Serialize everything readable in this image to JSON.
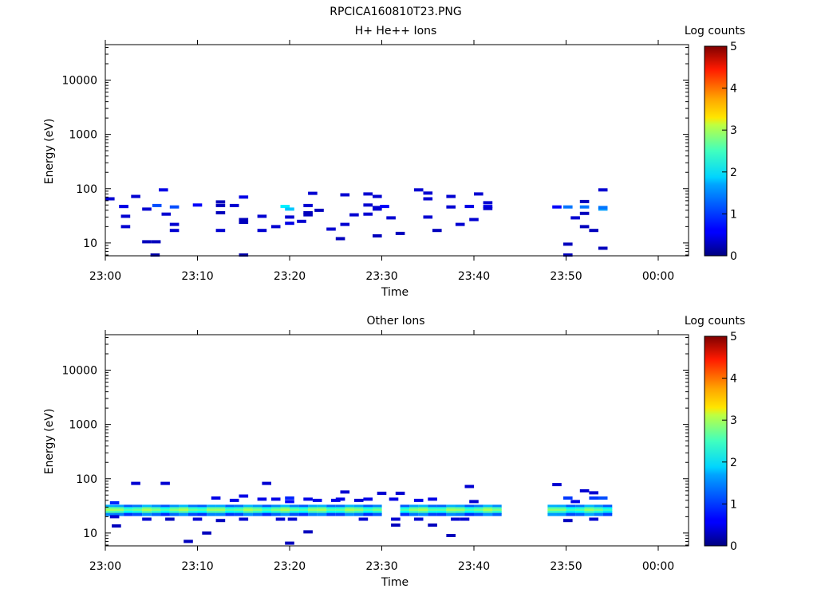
{
  "figure_title": "RPCICA160810T23.PNG",
  "chart_data": [
    {
      "type": "heatmap",
      "title": "H+ He++ Ions",
      "xlabel": "Time",
      "ylabel": "Energy (eV)",
      "x_tick_labels": [
        "23:00",
        "23:10",
        "23:20",
        "23:30",
        "23:40",
        "23:50",
        "00:00"
      ],
      "x_range_minutes": [
        0,
        63.5
      ],
      "y_scale": "log",
      "y_range": [
        5.8,
        45000
      ],
      "y_tick_labels": [
        "10",
        "100",
        "1000",
        "10000"
      ],
      "y_ticks": [
        10,
        100,
        1000,
        10000
      ],
      "colorbar": {
        "label": "Log counts",
        "range": [
          0,
          5
        ],
        "tick_labels": [
          "0",
          "1",
          "2",
          "3",
          "4",
          "5"
        ]
      },
      "cells": [
        [
          0.5,
          65,
          0.4
        ],
        [
          2,
          47,
          0.5
        ],
        [
          2,
          47,
          0.5
        ],
        [
          3.3,
          72,
          0.4
        ],
        [
          2.2,
          31,
          0.4
        ],
        [
          2.2,
          20,
          0.4
        ],
        [
          4.5,
          42,
          0.4
        ],
        [
          4.5,
          10.5,
          0.3
        ],
        [
          5.5,
          10.5,
          0.3
        ],
        [
          5.4,
          6,
          0.2
        ],
        [
          5.6,
          49,
          1.0
        ],
        [
          6.6,
          34,
          0.4
        ],
        [
          6.3,
          95,
          0.5
        ],
        [
          7.5,
          46,
          1.0
        ],
        [
          7.5,
          22,
          0.4
        ],
        [
          7.5,
          17,
          0.4
        ],
        [
          10,
          50,
          0.6
        ],
        [
          12.5,
          57,
          0.3
        ],
        [
          12.5,
          49,
          0.3
        ],
        [
          12.5,
          36,
          0.3
        ],
        [
          12.5,
          17,
          0.4
        ],
        [
          14,
          49,
          0.4
        ],
        [
          15,
          70,
          0.5
        ],
        [
          15,
          27,
          0.3
        ],
        [
          15,
          24,
          0.3
        ],
        [
          15,
          6,
          0.2
        ],
        [
          17,
          17,
          0.4
        ],
        [
          17,
          31,
          0.4
        ],
        [
          18.5,
          20,
          0.4
        ],
        [
          20,
          23,
          0.5
        ],
        [
          20,
          30,
          0.4
        ],
        [
          19.5,
          47,
          1.8
        ],
        [
          20,
          42,
          1.6
        ],
        [
          21.3,
          25,
          0.4
        ],
        [
          22,
          49,
          0.4
        ],
        [
          22,
          36,
          0.3
        ],
        [
          22,
          33,
          0.3
        ],
        [
          22.5,
          82,
          0.4
        ],
        [
          23.2,
          40,
          0.3
        ],
        [
          24.5,
          18,
          0.4
        ],
        [
          25.5,
          12,
          0.3
        ],
        [
          26,
          77,
          0.4
        ],
        [
          26,
          22,
          0.4
        ],
        [
          27,
          33,
          0.4
        ],
        [
          28.5,
          80,
          0.4
        ],
        [
          28.5,
          50,
          0.4
        ],
        [
          28.5,
          34,
          0.4
        ],
        [
          29.5,
          72,
          0.4
        ],
        [
          29.5,
          45,
          0.4
        ],
        [
          29.5,
          42,
          0.4
        ],
        [
          29.5,
          13.5,
          0.3
        ],
        [
          30.3,
          47,
          0.6
        ],
        [
          31,
          29,
          0.4
        ],
        [
          32,
          15,
          0.3
        ],
        [
          34,
          95,
          0.4
        ],
        [
          35,
          83,
          0.4
        ],
        [
          35,
          65,
          0.4
        ],
        [
          35,
          30,
          0.4
        ],
        [
          36,
          17,
          0.3
        ],
        [
          37.5,
          72,
          0.4
        ],
        [
          37.5,
          46,
          0.4
        ],
        [
          38.5,
          22,
          0.4
        ],
        [
          39.5,
          47,
          0.5
        ],
        [
          40,
          27,
          0.4
        ],
        [
          40.5,
          80,
          0.4
        ],
        [
          41.5,
          55,
          0.4
        ],
        [
          41.5,
          47,
          0.5
        ],
        [
          41.5,
          43,
          0.4
        ],
        [
          49,
          46,
          0.6
        ],
        [
          50.2,
          46,
          1.2
        ],
        [
          50.2,
          9.5,
          0.3
        ],
        [
          50.2,
          6,
          0.3
        ],
        [
          51,
          29,
          0.4
        ],
        [
          52,
          58,
          0.3
        ],
        [
          52,
          35,
          0.3
        ],
        [
          52,
          46,
          1.2
        ],
        [
          52,
          20,
          0.3
        ],
        [
          53,
          17,
          0.3
        ],
        [
          54,
          42,
          1.4
        ],
        [
          54,
          45,
          1.2
        ],
        [
          54,
          95,
          0.4
        ],
        [
          54,
          8,
          0.3
        ]
      ]
    },
    {
      "type": "heatmap",
      "title": "Other Ions",
      "xlabel": "Time",
      "ylabel": "Energy (eV)",
      "x_tick_labels": [
        "23:00",
        "23:10",
        "23:20",
        "23:30",
        "23:40",
        "23:50",
        "00:00"
      ],
      "x_range_minutes": [
        0,
        63.5
      ],
      "y_scale": "log",
      "y_range": [
        5.8,
        45000
      ],
      "y_tick_labels": [
        "10",
        "100",
        "1000",
        "10000"
      ],
      "y_ticks": [
        10,
        100,
        1000,
        10000
      ],
      "colorbar": {
        "label": "Log counts",
        "range": [
          0,
          5
        ],
        "tick_labels": [
          "0",
          "1",
          "2",
          "3",
          "4",
          "5"
        ]
      },
      "band": {
        "from": 0.5,
        "to": 42.5,
        "step": 1.0,
        "levels": [
          {
            "e": 31,
            "v": 1.3
          },
          {
            "e": 28,
            "v": 2.2
          },
          {
            "e": 26,
            "v": 2.5
          },
          {
            "e": 24,
            "v": 2.1
          },
          {
            "e": 22,
            "v": 1.1
          }
        ],
        "exclude": [
          [
            30.5,
            31.5
          ],
          [
            43,
            49
          ]
        ]
      },
      "band2": {
        "from": 48.5,
        "to": 54.5,
        "step": 1.0,
        "levels": [
          {
            "e": 31,
            "v": 1.3
          },
          {
            "e": 28,
            "v": 2.1
          },
          {
            "e": 26,
            "v": 2.4
          },
          {
            "e": 24,
            "v": 2.0
          },
          {
            "e": 22,
            "v": 1.2
          }
        ]
      },
      "cells": [
        [
          1,
          36,
          0.8
        ],
        [
          1,
          20,
          0.4
        ],
        [
          1.2,
          13.5,
          0.3
        ],
        [
          3.3,
          82,
          0.4
        ],
        [
          4.5,
          18,
          0.4
        ],
        [
          6.5,
          82,
          0.4
        ],
        [
          7,
          18,
          0.3
        ],
        [
          9,
          7,
          0.3
        ],
        [
          10,
          18,
          0.4
        ],
        [
          11,
          10,
          0.3
        ],
        [
          12,
          44,
          0.5
        ],
        [
          12.5,
          17,
          0.3
        ],
        [
          14,
          40,
          0.5
        ],
        [
          15,
          48,
          0.5
        ],
        [
          15,
          18,
          0.4
        ],
        [
          17,
          42,
          0.5
        ],
        [
          17.5,
          82,
          0.4
        ],
        [
          18.5,
          42,
          0.5
        ],
        [
          19,
          18,
          0.4
        ],
        [
          20,
          44,
          0.8
        ],
        [
          20,
          38,
          0.6
        ],
        [
          20,
          6.5,
          0.3
        ],
        [
          20.3,
          18,
          0.4
        ],
        [
          22,
          42,
          0.5
        ],
        [
          22,
          10.5,
          0.3
        ],
        [
          23,
          40,
          0.5
        ],
        [
          25,
          40,
          0.5
        ],
        [
          25.5,
          42,
          0.5
        ],
        [
          26,
          57,
          0.4
        ],
        [
          27.5,
          40,
          0.4
        ],
        [
          28,
          18,
          0.4
        ],
        [
          28.5,
          42,
          0.5
        ],
        [
          30,
          54,
          0.4
        ],
        [
          31.3,
          42,
          0.5
        ],
        [
          32,
          54,
          0.4
        ],
        [
          31.5,
          18,
          0.4
        ],
        [
          31.5,
          14,
          0.3
        ],
        [
          34,
          18,
          0.4
        ],
        [
          34,
          40,
          0.5
        ],
        [
          35.5,
          42,
          0.5
        ],
        [
          35.5,
          14,
          0.3
        ],
        [
          37.5,
          9,
          0.3
        ],
        [
          38,
          18,
          0.4
        ],
        [
          39,
          18,
          0.4
        ],
        [
          39.5,
          72,
          0.4
        ],
        [
          40,
          38,
          0.4
        ],
        [
          49,
          78,
          0.4
        ],
        [
          50.2,
          44,
          0.9
        ],
        [
          50.2,
          17,
          0.3
        ],
        [
          51,
          38,
          0.5
        ],
        [
          52,
          60,
          0.4
        ],
        [
          53,
          55,
          0.4
        ],
        [
          53,
          44,
          0.9
        ],
        [
          53,
          18,
          0.4
        ],
        [
          54,
          44,
          1.0
        ]
      ]
    }
  ]
}
